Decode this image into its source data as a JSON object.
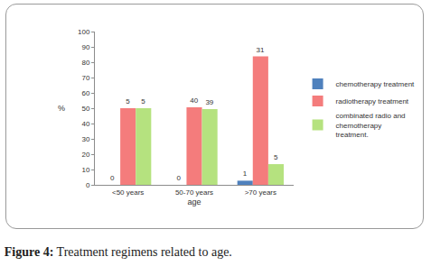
{
  "chart_data": {
    "type": "bar",
    "title": "Figure 4: Treatment regimens related to age.",
    "xlabel": "age",
    "ylabel": "%",
    "categories": [
      "<50 years",
      "50-70 years",
      ">70 years"
    ],
    "series": [
      {
        "name": "chemotherapy treatment",
        "color": "#4f81bd",
        "values": [
          0,
          0,
          2.7
        ],
        "counts": [
          0,
          0,
          1
        ]
      },
      {
        "name": "radiotherapy treatment",
        "color": "#f47c7c",
        "values": [
          50,
          50.6,
          83.8
        ],
        "counts": [
          5,
          40,
          31
        ]
      },
      {
        "name": "combinated radio and chemotherapy treatment.",
        "color": "#b5e27f",
        "values": [
          50,
          49.4,
          13.5
        ],
        "counts": [
          5,
          39,
          5
        ]
      }
    ],
    "ylim": [
      0,
      100
    ],
    "yticks": [
      0,
      10,
      20,
      30,
      40,
      50,
      60,
      70,
      80,
      90,
      100
    ],
    "grid": false,
    "legend": "right"
  }
}
